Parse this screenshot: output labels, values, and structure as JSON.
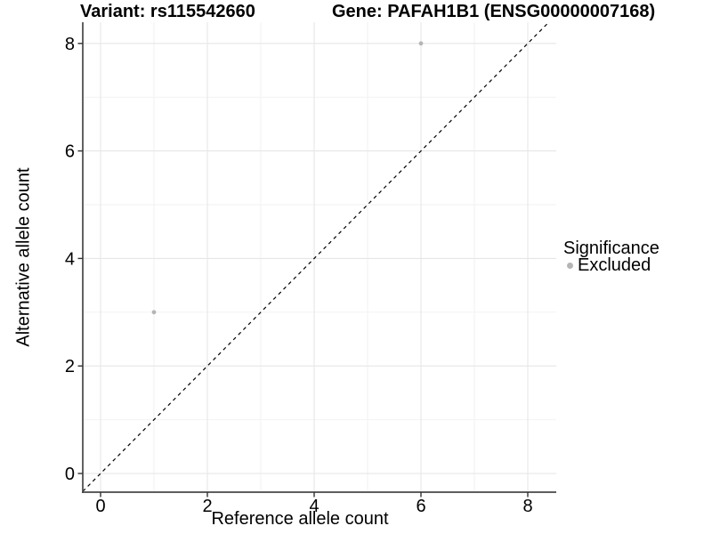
{
  "header": {
    "variant_title": "Variant: rs115542660",
    "gene_title": "Gene: PAFAH1B1 (ENSG00000007168)"
  },
  "legend": {
    "title": "Significance",
    "position": "right",
    "items": [
      {
        "label": "Excluded",
        "marker": "dot-icon",
        "color": "#b5b5b5"
      }
    ]
  },
  "chart_data": {
    "type": "scatter",
    "title": "Variant: rs115542660 | Gene: PAFAH1B1 (ENSG00000007168)",
    "xlabel": "Reference allele count",
    "ylabel": "Alternative allele count",
    "xlim": [
      -0.37,
      8.53
    ],
    "ylim": [
      -0.35,
      8.39
    ],
    "xticks": [
      0,
      2,
      4,
      6,
      8
    ],
    "yticks": [
      0,
      2,
      4,
      6,
      8
    ],
    "xticks_minor": [
      1,
      3,
      5,
      7
    ],
    "yticks_minor": [
      1,
      3,
      5,
      7
    ],
    "grid": "major+minor",
    "legend_position": "right",
    "series": [
      {
        "name": "Excluded",
        "color": "#b5b5b5",
        "marker_radius": 2.4,
        "points": [
          {
            "x": 1,
            "y": 3
          },
          {
            "x": 6,
            "y": 8
          }
        ]
      }
    ],
    "reference_line": {
      "kind": "identity",
      "slope": 1,
      "intercept": 0,
      "style": "dashed",
      "color": "#000000"
    }
  },
  "colors": {
    "background": "#ffffff",
    "grid_major": "#e6e6e6",
    "grid_minor": "#f2f2f2",
    "axis_line": "#474747",
    "tick_mark": "#333333",
    "text": "#000000",
    "point": "#b5b5b5",
    "reference_line": "#000000"
  }
}
